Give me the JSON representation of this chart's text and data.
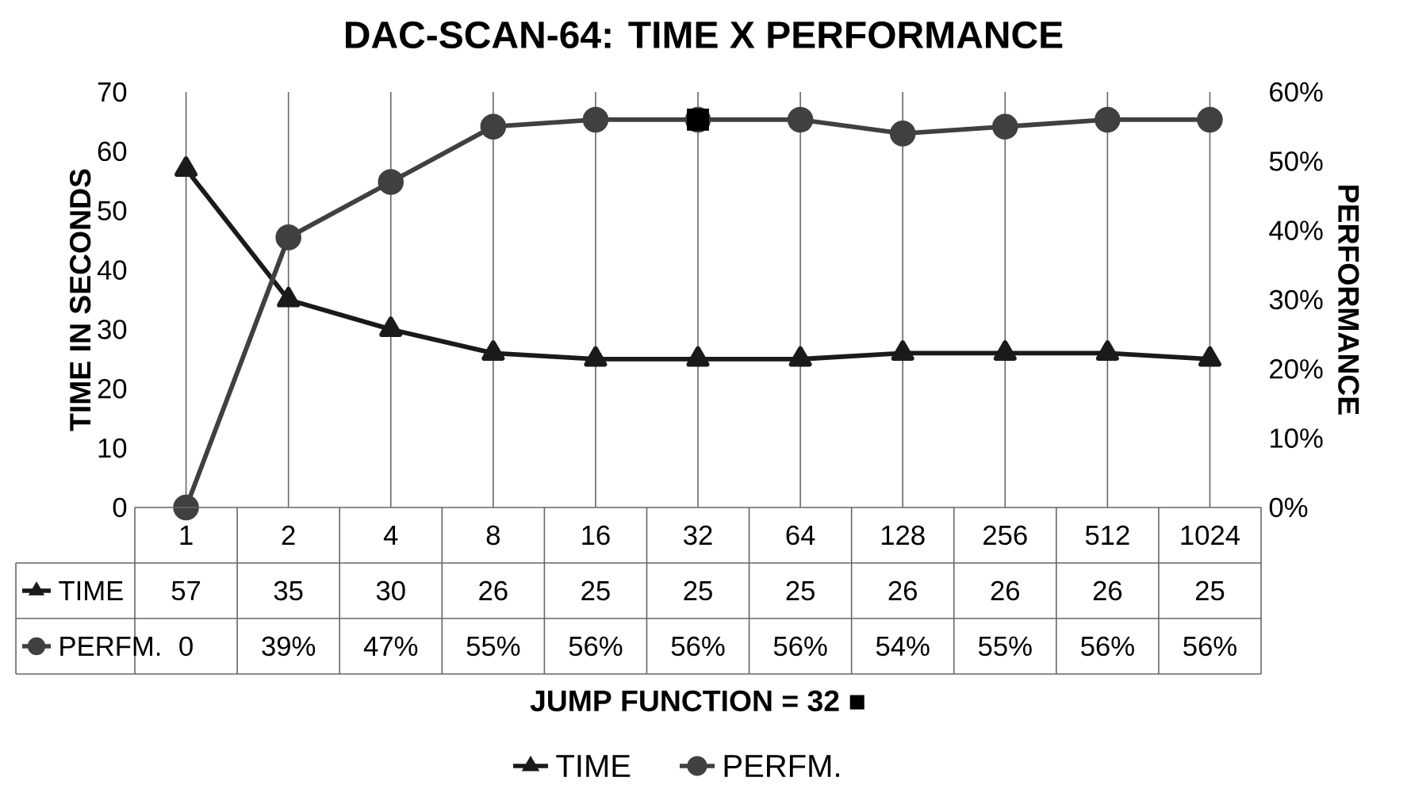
{
  "chart_data": {
    "type": "line",
    "title": "DAC-SCAN-64: TIME X PERFORMANCE",
    "xlabel": "JUMP FUNCTION = 32 ■",
    "ylabel": "TIME IN SECONDS",
    "y2label": "PERFORMANCE",
    "categories": [
      "1",
      "2",
      "4",
      "8",
      "16",
      "32",
      "64",
      "128",
      "256",
      "512",
      "1024"
    ],
    "ylim": [
      0,
      70
    ],
    "yticks": [
      0,
      10,
      20,
      30,
      40,
      50,
      60,
      70
    ],
    "y2lim": [
      0,
      60
    ],
    "y2ticks": [
      {
        "value": 0,
        "label": "0%"
      },
      {
        "value": 10,
        "label": "10%"
      },
      {
        "value": 20,
        "label": "20%"
      },
      {
        "value": 30,
        "label": "30%"
      },
      {
        "value": 40,
        "label": "40%"
      },
      {
        "value": 50,
        "label": "50%"
      },
      {
        "value": 60,
        "label": "60%"
      }
    ],
    "grid": "x",
    "legend": "bottom",
    "data_labels": true,
    "series": [
      {
        "name": "TIME",
        "color": "#1a1a1a",
        "marker": "triangle",
        "values": [
          57,
          35,
          30,
          26,
          25,
          25,
          25,
          26,
          26,
          26,
          25
        ],
        "value_labels": [
          "57",
          "35",
          "30",
          "26",
          "25",
          "25",
          "25",
          "26",
          "26",
          "26",
          "25"
        ]
      },
      {
        "name": "PERFM.",
        "color": "#404040",
        "marker": "circle",
        "axis": "y2",
        "values": [
          0,
          39,
          47,
          55,
          56,
          56,
          56,
          54,
          55,
          56,
          56
        ],
        "value_labels": [
          "0",
          "39%",
          "47%",
          "55%",
          "56%",
          "56%",
          "56%",
          "54%",
          "55%",
          "56%",
          "56%"
        ]
      },
      {
        "type": "scatter",
        "color": "#000000",
        "marker": "square",
        "axis": "y2",
        "x": [
          "32"
        ],
        "values": [
          56
        ],
        "value_labels": [
          null
        ]
      }
    ]
  }
}
